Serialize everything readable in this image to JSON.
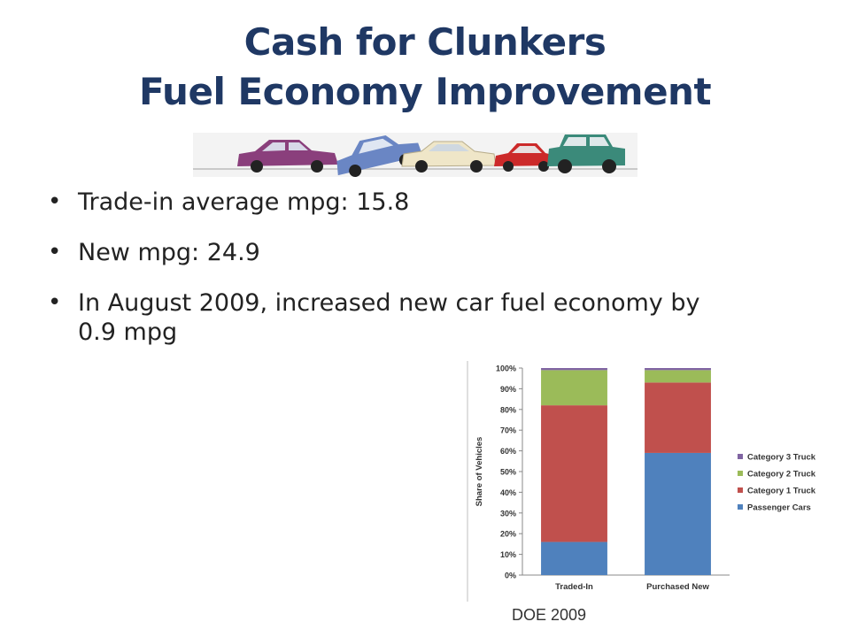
{
  "slide": {
    "title_line1": "Cash for Clunkers",
    "title_line2": "Fuel Economy Improvement",
    "bullets": [
      "Trade-in average mpg: 15.8",
      "New mpg: 24.9",
      "In August 2009, increased new car fuel economy by 0.9 mpg"
    ],
    "source": "DOE 2009",
    "image": "cars-crash-illustration"
  },
  "chart_data": {
    "type": "bar",
    "stacked": true,
    "categories": [
      "Traded-In",
      "Purchased New"
    ],
    "series": [
      {
        "name": "Passenger Cars",
        "color": "#4f81bd",
        "values": [
          16,
          59
        ]
      },
      {
        "name": "Category 1 Truck",
        "color": "#c0504d",
        "values": [
          66,
          34
        ]
      },
      {
        "name": "Category 2 Truck",
        "color": "#9bbb59",
        "values": [
          17,
          6
        ]
      },
      {
        "name": "Category 3 Truck",
        "color": "#8064a2",
        "values": [
          1,
          1
        ]
      }
    ],
    "title": "",
    "xlabel": "",
    "ylabel": "Share of Vehicles",
    "ylim": [
      0,
      100
    ],
    "yticks": [
      "0%",
      "10%",
      "20%",
      "30%",
      "40%",
      "50%",
      "60%",
      "70%",
      "80%",
      "90%",
      "100%"
    ],
    "legend_order": [
      "Category 3 Truck",
      "Category 2 Truck",
      "Category 1 Truck",
      "Passenger Cars"
    ],
    "legend_position": "right",
    "grid": false
  }
}
